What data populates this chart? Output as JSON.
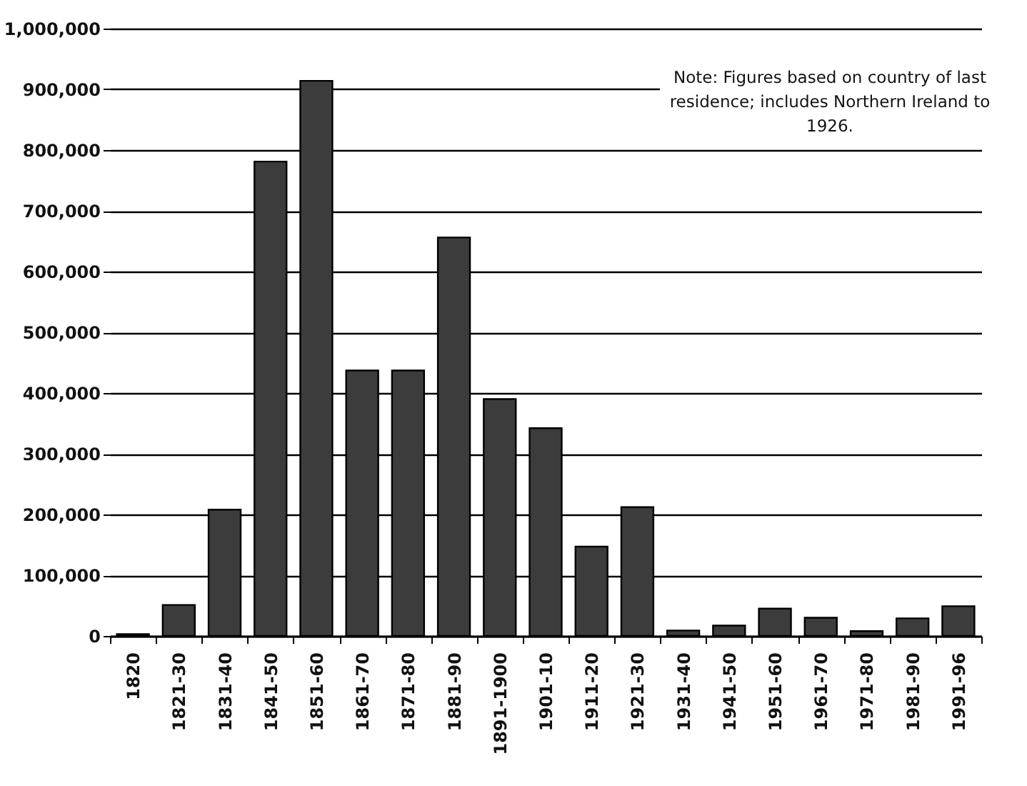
{
  "chart_data": {
    "type": "bar",
    "categories": [
      "1820",
      "1821-30",
      "1831-40",
      "1841-50",
      "1851-60",
      "1861-70",
      "1871-80",
      "1881-90",
      "1891-1900",
      "1901-10",
      "1911-20",
      "1921-30",
      "1931-40",
      "1941-50",
      "1951-60",
      "1961-70",
      "1971-80",
      "1981-90",
      "1991-96"
    ],
    "values": [
      3000,
      51000,
      208000,
      781000,
      914000,
      437000,
      437000,
      656000,
      390000,
      342000,
      147000,
      212000,
      9000,
      17000,
      45000,
      30000,
      8000,
      29000,
      49000
    ],
    "color": "#3c3c3c",
    "ylim": [
      0,
      1000000
    ],
    "yticks": [
      {
        "value": 0,
        "label": "0"
      },
      {
        "value": 100000,
        "label": "100,000"
      },
      {
        "value": 200000,
        "label": "200,000"
      },
      {
        "value": 300000,
        "label": "300,000"
      },
      {
        "value": 400000,
        "label": "400,000"
      },
      {
        "value": 500000,
        "label": "500,000"
      },
      {
        "value": 600000,
        "label": "600,000"
      },
      {
        "value": 700000,
        "label": "700,000"
      },
      {
        "value": 800000,
        "label": "800,000"
      },
      {
        "value": 900000,
        "label": "900,000"
      },
      {
        "value": 1000000,
        "label": "1,000,000"
      }
    ],
    "grid": "y",
    "annotations": [
      "Note: Figures based on country of last residence; includes Northern Ireland to 1926."
    ]
  }
}
